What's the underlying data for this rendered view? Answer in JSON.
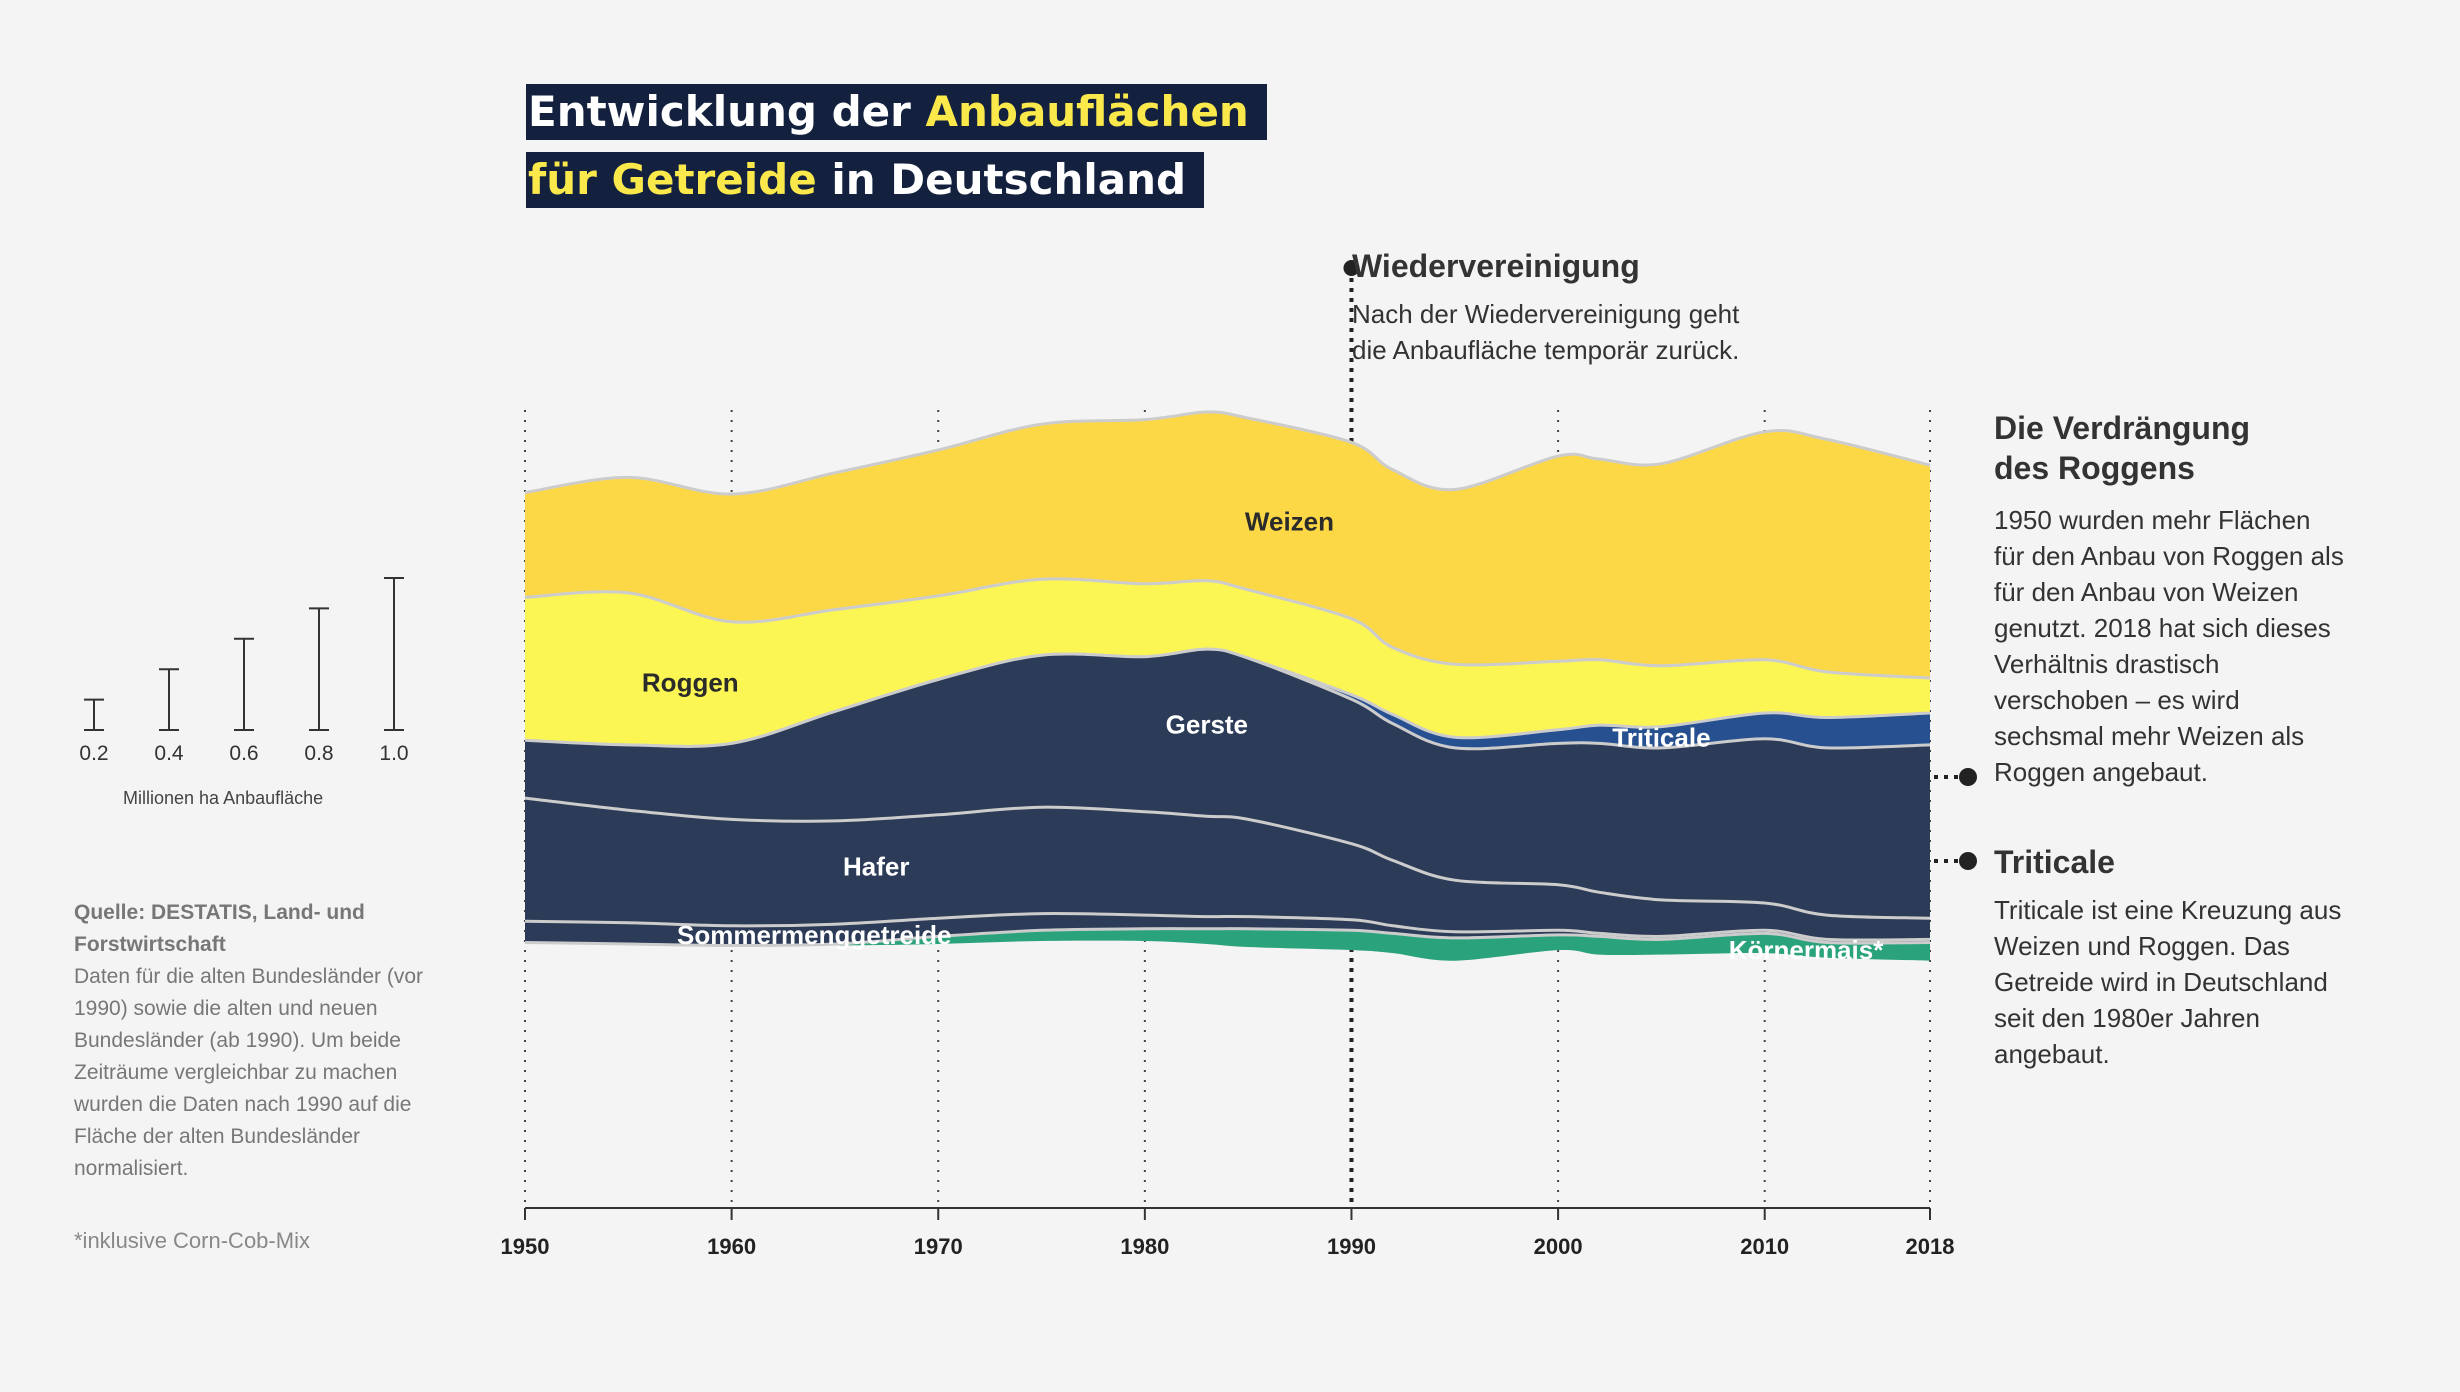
{
  "title": {
    "line1_a": "Entwicklung der ",
    "line1_b": "Anbauflächen",
    "line2_a": "für Getreide",
    "line2_b": " in Deutschland"
  },
  "annotations": {
    "reunification": {
      "title": "Wiedervereinigung",
      "text_lines": [
        "Nach der Wiedervereinigung geht",
        "die Anbaufläche temporär zurück."
      ]
    },
    "rye": {
      "title_lines": [
        "Die Verdrängung",
        "des Roggens"
      ],
      "text_lines": [
        "1950 wurden mehr Flächen",
        "für den Anbau von Roggen als",
        "für den Anbau von Weizen",
        "genutzt. 2018 hat sich dieses",
        "Verhältnis drastisch",
        "verschoben – es wird",
        "sechsmal mehr Weizen als",
        "Roggen angebaut."
      ]
    },
    "triticale": {
      "title": "Triticale",
      "text_lines": [
        "Triticale ist eine Kreuzung aus",
        "Weizen und Roggen. Das",
        "Getreide wird in Deutschland",
        "seit den 1980er Jahren",
        "angebaut."
      ]
    }
  },
  "source": {
    "heading_lines": [
      "Quelle: DESTATIS, Land- und",
      "Forstwirtschaft"
    ],
    "text_lines": [
      "Daten für die alten Bundesländer (vor",
      "1990) sowie die alten und neuen",
      "Bundesländer (ab 1990). Um beide",
      "Zeiträume vergleichbar zu machen",
      "wurden die Daten nach 1990 auf die",
      "Fläche der alten Bundesländer",
      "normalisiert."
    ]
  },
  "footnote": "*inklusive Corn-Cob-Mix",
  "colors": {
    "background": "#f4f4f4",
    "title_bg": "#13213f",
    "title_highlight": "#fbe94c",
    "weizen": "#fdd846",
    "roggen": "#fbf654",
    "gerste": "#2c3b57",
    "hafer": "#2c3b57",
    "sommermenggetreide": "#2c3b57",
    "triticale": "#26508f",
    "koernermais": "#2aa27c",
    "separator": "#cccccc"
  },
  "chart_data": {
    "type": "area",
    "subtype": "streamgraph",
    "x_ticks": [
      1950,
      1960,
      1970,
      1980,
      1990,
      2000,
      2010,
      2018
    ],
    "x_tick_labels": [
      "1950",
      "1960",
      "1970",
      "1980",
      "1990",
      "2000",
      "2010",
      "2018"
    ],
    "xlim": [
      1950,
      2018
    ],
    "size_legend": {
      "values": [
        0.2,
        0.4,
        0.6,
        0.8,
        1.0
      ],
      "labels": [
        "0.2",
        "0.4",
        "0.6",
        "0.8",
        "1.0"
      ],
      "caption": "Millionen ha Anbaufläche"
    },
    "years": [
      1950,
      1955,
      1960,
      1965,
      1970,
      1975,
      1980,
      1983,
      1985,
      1990,
      1992,
      1995,
      2000,
      2002,
      2005,
      2010,
      2013,
      2018
    ],
    "baseline": [
      0.86,
      0.85,
      0.84,
      0.84,
      0.85,
      0.87,
      0.87,
      0.85,
      0.83,
      0.81,
      0.79,
      0.74,
      0.81,
      0.78,
      0.78,
      0.79,
      0.76,
      0.74
    ],
    "series": [
      {
        "name": "Körnermais*",
        "label": "Körnermais*",
        "values": [
          0,
          0,
          0,
          0.01,
          0.05,
          0.07,
          0.08,
          0.1,
          0.12,
          0.13,
          0.13,
          0.15,
          0.1,
          0.12,
          0.1,
          0.13,
          0.1,
          0.12
        ]
      },
      {
        "name": "Sommermenggetreide",
        "label": "Sommermenggetreide",
        "values": [
          0.14,
          0.14,
          0.13,
          0.13,
          0.12,
          0.11,
          0.09,
          0.08,
          0.08,
          0.07,
          0.05,
          0.04,
          0.03,
          0.02,
          0.02,
          0.02,
          0.02,
          0.02
        ]
      },
      {
        "name": "Hafer",
        "label": "Hafer",
        "values": [
          0.81,
          0.74,
          0.7,
          0.68,
          0.68,
          0.7,
          0.68,
          0.66,
          0.64,
          0.5,
          0.43,
          0.34,
          0.3,
          0.27,
          0.24,
          0.18,
          0.16,
          0.14
        ]
      },
      {
        "name": "Gerste",
        "label": "Gerste",
        "values": [
          0.38,
          0.43,
          0.5,
          0.72,
          0.89,
          1.0,
          1.02,
          1.1,
          1.06,
          0.95,
          0.9,
          0.87,
          0.93,
          0.98,
          1.0,
          1.08,
          1.1,
          1.14
        ]
      },
      {
        "name": "Triticale",
        "label": "Triticale",
        "values": [
          0,
          0,
          0,
          0,
          0,
          0,
          0,
          0,
          0,
          0.03,
          0.06,
          0.07,
          0.09,
          0.12,
          0.14,
          0.17,
          0.2,
          0.21
        ]
      },
      {
        "name": "Roggen",
        "label": "Roggen",
        "values": [
          0.94,
          1.0,
          0.8,
          0.67,
          0.55,
          0.5,
          0.48,
          0.45,
          0.45,
          0.5,
          0.44,
          0.48,
          0.45,
          0.43,
          0.4,
          0.35,
          0.3,
          0.23
        ]
      },
      {
        "name": "Weizen",
        "label": "Weizen",
        "values": [
          0.69,
          0.76,
          0.84,
          0.9,
          0.96,
          1.02,
          1.08,
          1.11,
          1.13,
          1.16,
          1.17,
          1.15,
          1.35,
          1.32,
          1.33,
          1.5,
          1.53,
          1.4
        ]
      }
    ]
  }
}
